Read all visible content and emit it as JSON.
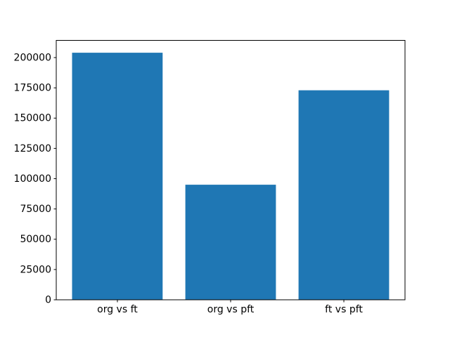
{
  "chart_data": {
    "type": "bar",
    "title": "",
    "xlabel": "",
    "ylabel": "",
    "categories": [
      "org vs ft",
      "org vs pft",
      "ft vs pft"
    ],
    "values": [
      204000,
      95000,
      173000
    ],
    "yticks": [
      0,
      25000,
      50000,
      75000,
      100000,
      125000,
      150000,
      175000,
      200000
    ],
    "ylim": [
      0,
      214200
    ],
    "bar_color": "#1f77b4",
    "axis_color": "#000000",
    "background_color": "#ffffff",
    "grid": false,
    "legend_position": "none",
    "bar_width_fraction": 0.8
  }
}
